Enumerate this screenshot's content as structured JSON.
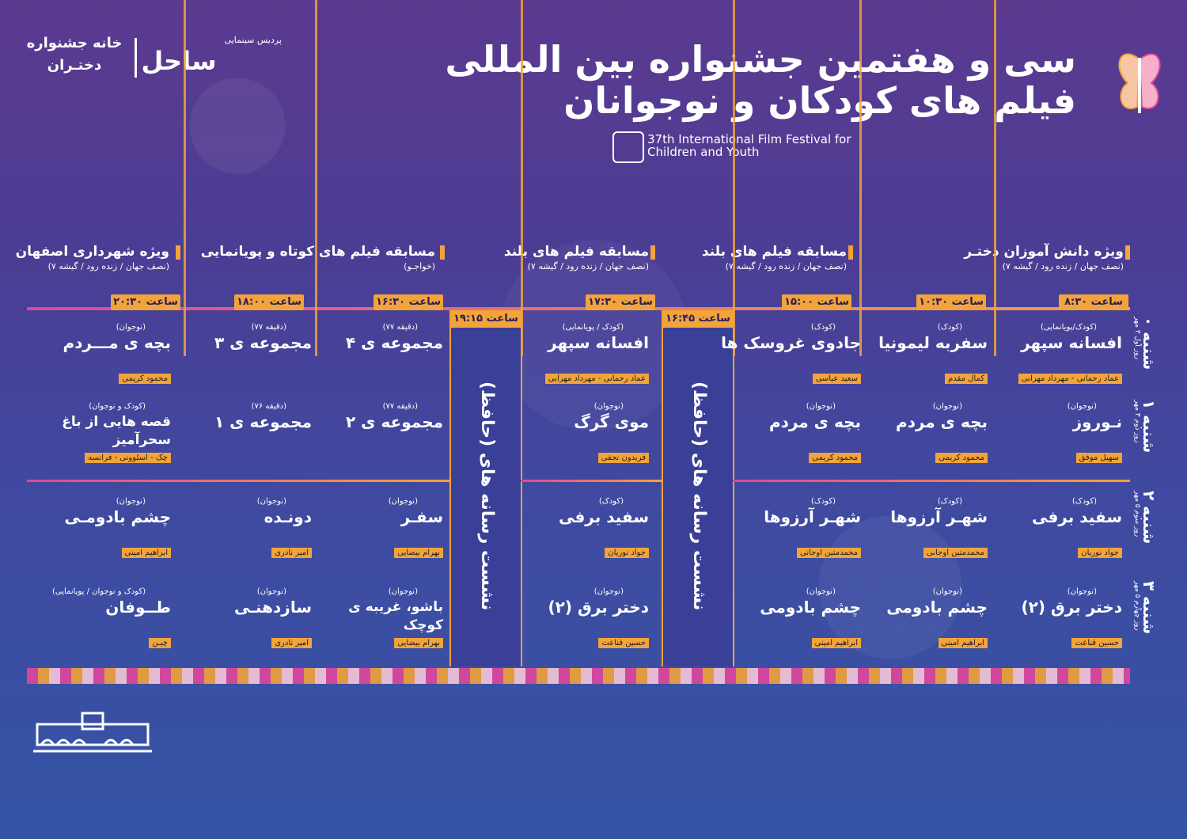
{
  "header": {
    "title_line1": "سی و هفتمین جشنواره بین المللی",
    "title_line2": "فیلم های کودکان و نوجوانان",
    "subtitle_en": "37th International Film Festival for Children and Youth",
    "venue_cinema": "پردیس سینمایی",
    "venue_name": "ساحل",
    "house_line1": "خانه جشنواره",
    "house_line2": "دختـران"
  },
  "sections": [
    {
      "title": "ویژه دانش آموزان دختـر",
      "sub": "(نصف جهان / زنده رود / گیشه ۷)"
    },
    {
      "title": "مسابقه فیلم های بلند",
      "sub": "(نصف جهان / زنده رود / گیشه ۷)"
    },
    {
      "title": "مسابقه فیلم های بلند",
      "sub": "(نصف جهان / زنده رود / گیشه ۷)"
    },
    {
      "title": "مسابقه فیلم های کوتاه و پویانمایی",
      "sub": "(خواجـو)"
    },
    {
      "title": "ویژه شهرداری اصفهان",
      "sub": "(نصف جهان / زنده رود / گیشه ۷)"
    }
  ],
  "times": [
    "ساعت ۸:۳۰",
    "ساعت ۱۰:۳۰",
    "ساعت ۱۵:۰۰",
    "ساعت ۱۷:۳۰",
    "ساعت ۱۶:۳۰",
    "ساعت ۱۸:۰۰",
    "ساعت ۲۰:۳۰"
  ],
  "sessions": [
    {
      "time": "ساعت ۱۶:۴۵",
      "text": "نشست رسانه های (حافظ)"
    },
    {
      "time": "ساعت ۱۹:۱۵",
      "text": "نشست رسانه های (حافظ)"
    }
  ],
  "days": [
    {
      "name": "شنبه ۰",
      "date": "روز اول ۳ مهر"
    },
    {
      "name": "شنبه ۱",
      "date": "روز دوم ۳ مهر"
    },
    {
      "name": "شنبه ۲",
      "date": "روز سوم ۵ مهر"
    },
    {
      "name": "شنبه ۳",
      "date": "روز چهارم ۵ مهر"
    }
  ],
  "rows": [
    [
      {
        "tag": "(کودک/پویانمایی)",
        "film": "افسانه سپهر",
        "dir": "عماد رحمانی - مهرداد مهرابی"
      },
      {
        "tag": "(کودک)",
        "film": "سفربه لیمونیا",
        "dir": "کمال مقدم"
      },
      {
        "tag": "(کودک)",
        "film": "جادوی غروسک ها",
        "dir": "سعید عباسی"
      },
      {
        "tag": "(کودک / پویانمایی)",
        "film": "افسانه سپهر",
        "dir": "عماد رحمانی - مهرداد مهرابی"
      },
      {
        "tag": "(دقیقه ۷۷)",
        "film": "مجموعه ی ۴",
        "dir": ""
      },
      {
        "tag": "(دقیقه ۷۷)",
        "film": "مجموعه ی ۳",
        "dir": ""
      },
      {
        "tag": "(نوجوان)",
        "film": "بچه ی مـــردم",
        "dir": "محمود کریمی"
      }
    ],
    [
      {
        "tag": "(نوجوان)",
        "film": "نـوروز",
        "dir": "سهیل موفق"
      },
      {
        "tag": "(نوجوان)",
        "film": "بچه ی مردم",
        "dir": "محمود کریمی"
      },
      {
        "tag": "(نوجوان)",
        "film": "بچه ی مردم",
        "dir": "محمود کریمی"
      },
      {
        "tag": "(نوجوان)",
        "film": "موی گرگ",
        "dir": "فریدون نجفی"
      },
      {
        "tag": "(دقیقه ۷۷)",
        "film": "مجموعه ی ۲",
        "dir": ""
      },
      {
        "tag": "(دقیقه ۷۶)",
        "film": "مجموعه ی ۱",
        "dir": ""
      },
      {
        "tag": "(کودک و نوجوان)",
        "film": "قصه هایی از باغ سحرآمیز",
        "dir": "چک - اسلوونی - فرانسه"
      }
    ],
    [
      {
        "tag": "(کودک)",
        "film": "سفید برفی",
        "dir": "جواد نوریان"
      },
      {
        "tag": "(کودک)",
        "film": "شهـر آرزوها",
        "dir": "محمدمتین اوجانی"
      },
      {
        "tag": "(کودک)",
        "film": "شهـر آرزوها",
        "dir": "محمدمتین اوجانی"
      },
      {
        "tag": "(کودک)",
        "film": "سفید برفی",
        "dir": "جواد نوریان"
      },
      {
        "tag": "(نوجوان)",
        "film": "سفـر",
        "dir": "بهرام بیضایی"
      },
      {
        "tag": "(نوجوان)",
        "film": "دونـده",
        "dir": "امیر نادری"
      },
      {
        "tag": "(نوجوان)",
        "film": "چشم بادومـی",
        "dir": "ابراهیم امینی"
      }
    ],
    [
      {
        "tag": "(نوجوان)",
        "film": "دختر برق (۲)",
        "dir": "حسین قناعت"
      },
      {
        "tag": "(نوجوان)",
        "film": "چشم بادومی",
        "dir": "ابراهیم امینی"
      },
      {
        "tag": "(نوجوان)",
        "film": "چشم بادومی",
        "dir": "ابراهیم امینی"
      },
      {
        "tag": "(نوجوان)",
        "film": "دختر برق (۲)",
        "dir": "حسین قناعت"
      },
      {
        "tag": "(نوجوان)",
        "film": "باشو، غریبه ی کوچک",
        "dir": "بهرام بیضایی"
      },
      {
        "tag": "(نوجوان)",
        "film": "سازدهنـی",
        "dir": "امیر نادری"
      },
      {
        "tag": "(کودک و نوجوان / پویانمایی)",
        "film": "طــوفان",
        "dir": "چیـن"
      }
    ]
  ]
}
